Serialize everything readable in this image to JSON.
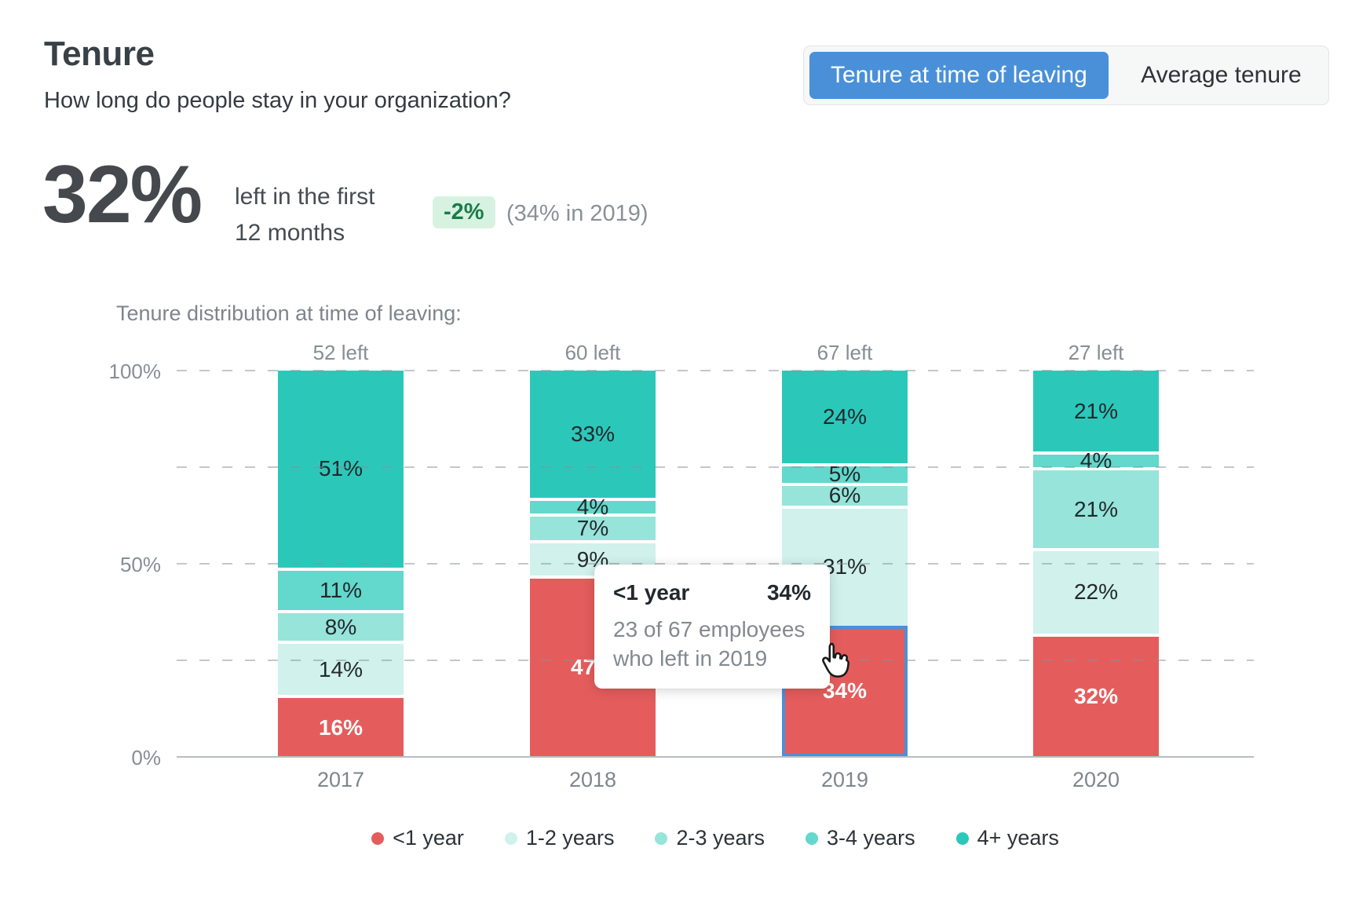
{
  "header": {
    "title": "Tenure",
    "subtitle": "How long do people stay in your organization?",
    "toggle": {
      "active_label": "Tenure at time of leaving",
      "inactive_label": "Average tenure"
    }
  },
  "stat": {
    "value": "32%",
    "line1": "left in the first",
    "line2": "12 months",
    "delta_badge": "-2%",
    "comparison": "(34% in 2019)"
  },
  "chart": {
    "caption": "Tenure distribution at time of leaving:",
    "y_ticks": [
      {
        "pct": 100,
        "label": "100%"
      },
      {
        "pct": 50,
        "label": "50%"
      },
      {
        "pct": 0,
        "label": "0%"
      }
    ]
  },
  "chart_data": {
    "type": "bar",
    "stacked": true,
    "categories": [
      "2017",
      "2018",
      "2019",
      "2020"
    ],
    "bar_totals": [
      "52 left",
      "60 left",
      "67 left",
      "27 left"
    ],
    "series": [
      {
        "name": "<1 year",
        "color": "#e45d5c",
        "text": "light",
        "values": [
          16,
          47,
          34,
          32
        ]
      },
      {
        "name": "1-2 years",
        "color": "#d0f1ec",
        "text": "dark",
        "values": [
          14,
          9,
          31,
          22
        ]
      },
      {
        "name": "2-3 years",
        "color": "#96e4da",
        "text": "dark",
        "values": [
          8,
          7,
          6,
          21
        ]
      },
      {
        "name": "3-4 years",
        "color": "#63d8cc",
        "text": "dark",
        "values": [
          11,
          4,
          5,
          4
        ]
      },
      {
        "name": "4+ years",
        "color": "#2bc8ba",
        "text": "dark",
        "values": [
          51,
          33,
          24,
          21
        ]
      }
    ],
    "ylim": [
      0,
      100
    ],
    "gridlines_pct": [
      100,
      75,
      50,
      25,
      0
    ],
    "grid": "dashed",
    "legend_position": "bottom"
  },
  "selection": {
    "category": "2019",
    "series": "<1 year"
  },
  "tooltip": {
    "title": "<1 year",
    "value": "34%",
    "line1": "23 of 67 employees",
    "line2": "who left in 2019"
  },
  "colors": {
    "accent_blue": "#4a90d9",
    "selection_border": "#4a90d9",
    "delta_positive_bg": "#d8f2e2",
    "delta_positive_text": "#1b7c47",
    "red_lt1": "#e45d5c",
    "teal_1_2": "#d0f1ec",
    "teal_2_3": "#96e4da",
    "teal_3_4": "#63d8cc",
    "teal_4plus": "#2bc8ba"
  }
}
